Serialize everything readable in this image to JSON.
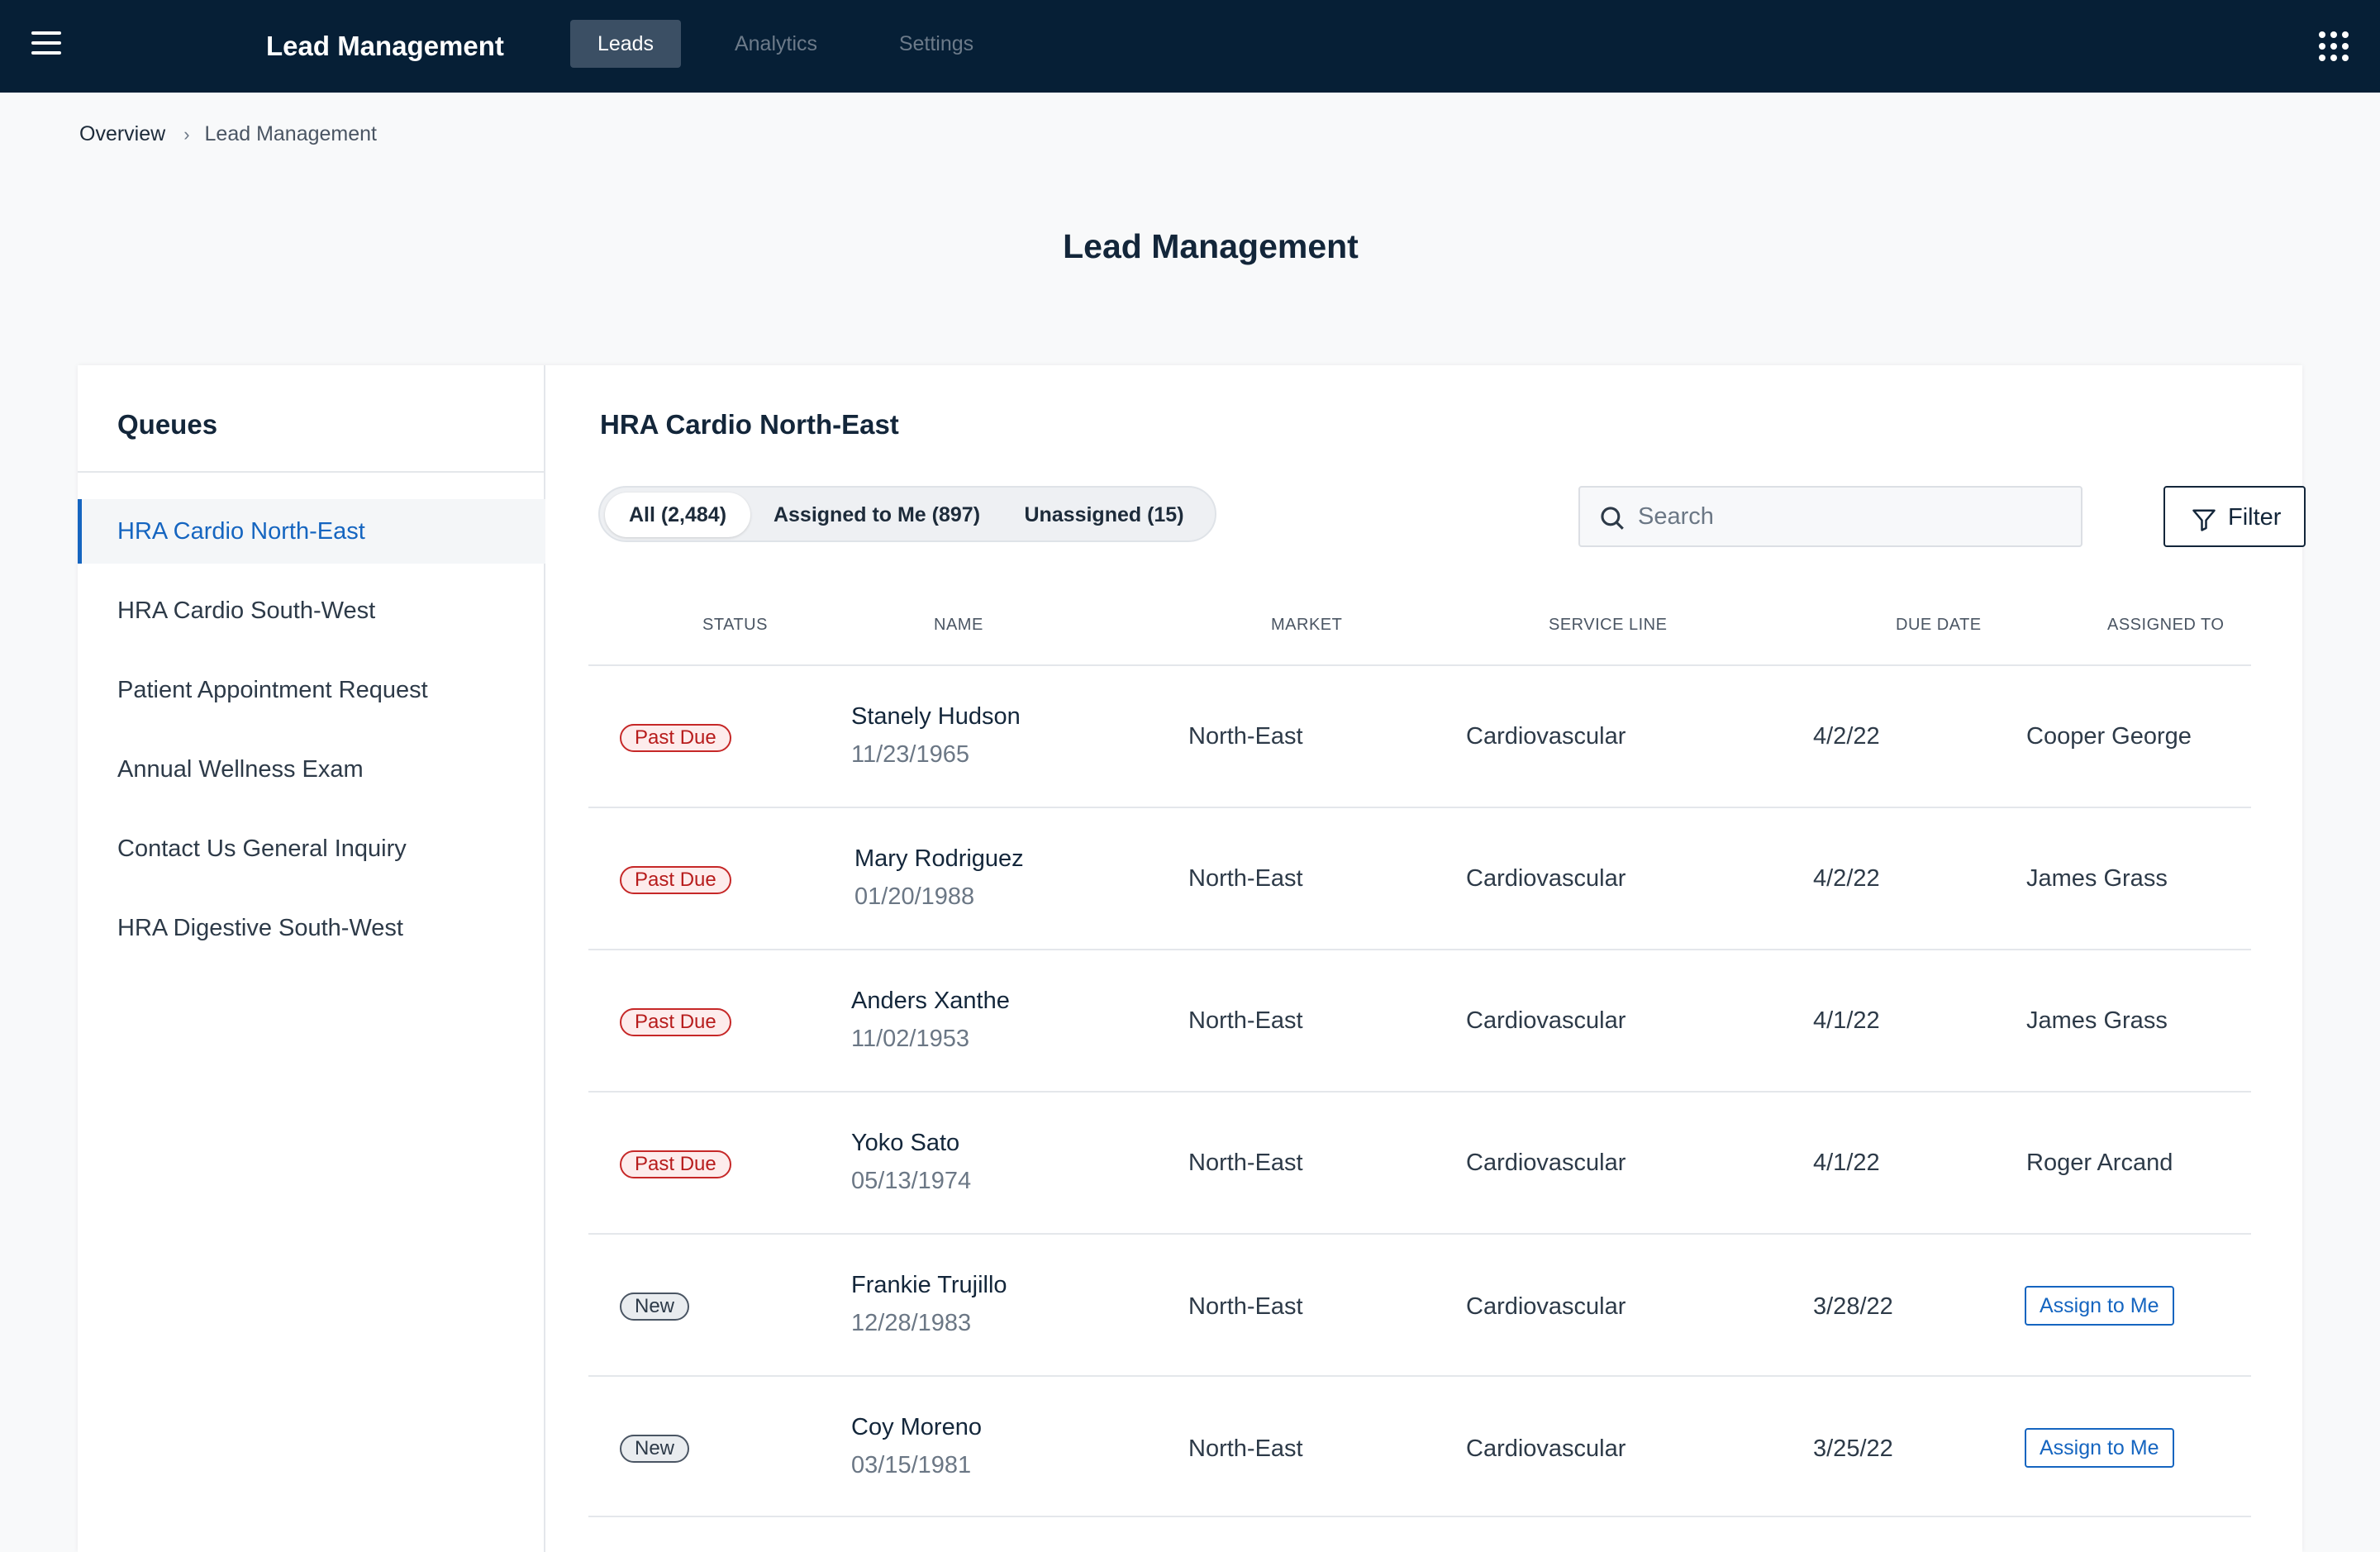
{
  "header": {
    "app_title": "Lead Management",
    "tabs": [
      {
        "label": "Leads",
        "active": true
      },
      {
        "label": "Analytics",
        "active": false
      },
      {
        "label": "Settings",
        "active": false
      }
    ],
    "menu_icon": "hamburger-menu-icon",
    "apps_icon": "apps-grid-icon"
  },
  "breadcrumb": {
    "root": "Overview",
    "current": "Lead Management"
  },
  "page_title": "Lead Management",
  "sidebar": {
    "title": "Queues",
    "items": [
      {
        "label": "HRA Cardio North-East",
        "active": true
      },
      {
        "label": "HRA Cardio South-West"
      },
      {
        "label": "Patient Appointment Request"
      },
      {
        "label": "Annual Wellness Exam"
      },
      {
        "label": "Contact Us General Inquiry"
      },
      {
        "label": "HRA Digestive South-West"
      }
    ]
  },
  "main": {
    "queue_title": "HRA Cardio North-East",
    "segments": [
      {
        "label": "All (2,484)",
        "active": true
      },
      {
        "label": "Assigned to Me (897)"
      },
      {
        "label": "Unassigned (15)"
      }
    ],
    "search": {
      "placeholder": "Search",
      "value": ""
    },
    "filter_label": "Filter",
    "columns": [
      "STATUS",
      "NAME",
      "MARKET",
      "SERVICE LINE",
      "DUE DATE",
      "ASSIGNED TO"
    ],
    "rows": [
      {
        "status": "Past Due",
        "status_type": "past",
        "name": "Stanely Hudson",
        "dob": "11/23/1965",
        "market": "North-East",
        "service_line": "Cardiovascular",
        "due_date": "4/2/22",
        "assigned_to": "Cooper George"
      },
      {
        "status": "Past Due",
        "status_type": "past",
        "name": "Mary Rodriguez",
        "dob": "01/20/1988",
        "market": "North-East",
        "service_line": "Cardiovascular",
        "due_date": "4/2/22",
        "assigned_to": "James Grass"
      },
      {
        "status": "Past Due",
        "status_type": "past",
        "name": "Anders Xanthe",
        "dob": "11/02/1953",
        "market": "North-East",
        "service_line": "Cardiovascular",
        "due_date": "4/1/22",
        "assigned_to": "James Grass"
      },
      {
        "status": "Past Due",
        "status_type": "past",
        "name": "Yoko Sato",
        "dob": "05/13/1974",
        "market": "North-East",
        "service_line": "Cardiovascular",
        "due_date": "4/1/22",
        "assigned_to": "Roger Arcand"
      },
      {
        "status": "New",
        "status_type": "new",
        "name": "Frankie Trujillo",
        "dob": "12/28/1983",
        "market": "North-East",
        "service_line": "Cardiovascular",
        "due_date": "3/28/22",
        "assigned_to": "",
        "action": "Assign to Me"
      },
      {
        "status": "New",
        "status_type": "new",
        "name": "Coy Moreno",
        "dob": "03/15/1981",
        "market": "North-East",
        "service_line": "Cardiovascular",
        "due_date": "3/25/22",
        "assigned_to": "",
        "action": "Assign to Me"
      }
    ]
  },
  "colors": {
    "topbar": "#061f36",
    "accent": "#1565c0",
    "past_due": "#c62828"
  }
}
